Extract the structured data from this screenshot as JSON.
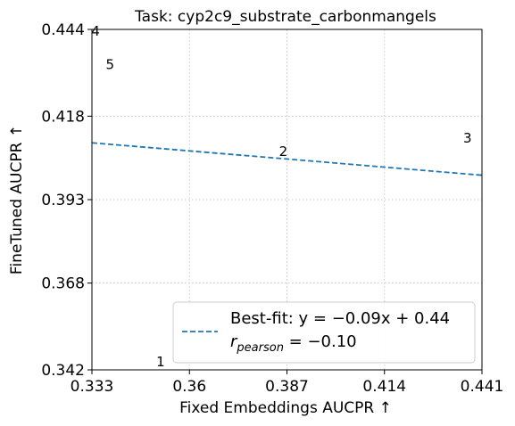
{
  "chart_data": {
    "type": "scatter",
    "title": "Task: cyp2c9_substrate_carbonmangels",
    "xlabel": "Fixed Embeddings AUCPR ↑",
    "ylabel": "FineTuned AUCPR ↑",
    "xlim": [
      0.333,
      0.441
    ],
    "ylim": [
      0.342,
      0.444
    ],
    "xticks": [
      0.333,
      0.36,
      0.387,
      0.414,
      0.441
    ],
    "xtick_labels": [
      "0.333",
      "0.36",
      "0.387",
      "0.414",
      "0.441"
    ],
    "yticks": [
      0.342,
      0.368,
      0.393,
      0.418,
      0.444
    ],
    "ytick_labels": [
      "0.342",
      "0.368",
      "0.393",
      "0.418",
      "0.444"
    ],
    "grid": true,
    "points": [
      {
        "label": "1",
        "x": 0.352,
        "y": 0.342
      },
      {
        "label": "2",
        "x": 0.386,
        "y": 0.405
      },
      {
        "label": "3",
        "x": 0.437,
        "y": 0.409
      },
      {
        "label": "4",
        "x": 0.334,
        "y": 0.441
      },
      {
        "label": "5",
        "x": 0.338,
        "y": 0.431
      }
    ],
    "fit": {
      "slope": -0.09,
      "intercept": 0.44
    },
    "legend": {
      "position": "lower-right",
      "line1": "Best-fit: y = −0.09x + 0.44",
      "line2_main": "r",
      "line2_sub": "pearson",
      "line2_rest": " = −0.10"
    },
    "colors": {
      "fit_line": "#1f77b4",
      "grid": "#cccccc"
    }
  }
}
